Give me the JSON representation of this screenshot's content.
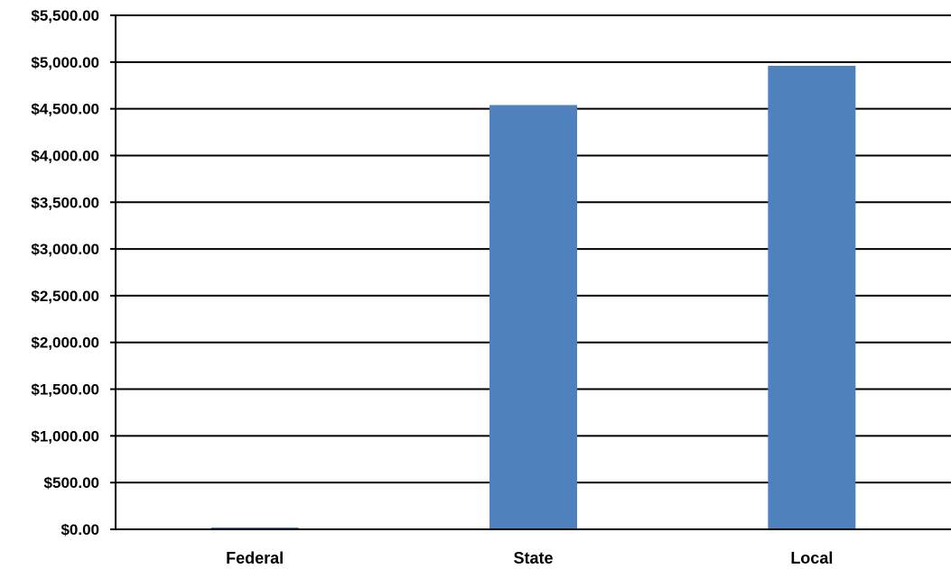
{
  "chart_data": {
    "type": "bar",
    "title": "",
    "xlabel": "",
    "ylabel": "",
    "categories": [
      "Federal",
      "State",
      "Local"
    ],
    "values": [
      20,
      4540,
      4960
    ],
    "ylim": [
      0,
      5500
    ],
    "yticks": [
      0,
      500,
      1000,
      1500,
      2000,
      2500,
      3000,
      3500,
      4000,
      4500,
      5000,
      5500
    ],
    "ytick_labels": [
      "$0.00",
      "$500.00",
      "$1,000.00",
      "$1,500.00",
      "$2,000.00",
      "$2,500.00",
      "$3,000.00",
      "$3,500.00",
      "$4,000.00",
      "$4,500.00",
      "$5,000.00",
      "$5,500.00"
    ],
    "grid": true,
    "legend": "none",
    "bar_color": "#4F81BD",
    "grid_color": "#000000"
  }
}
